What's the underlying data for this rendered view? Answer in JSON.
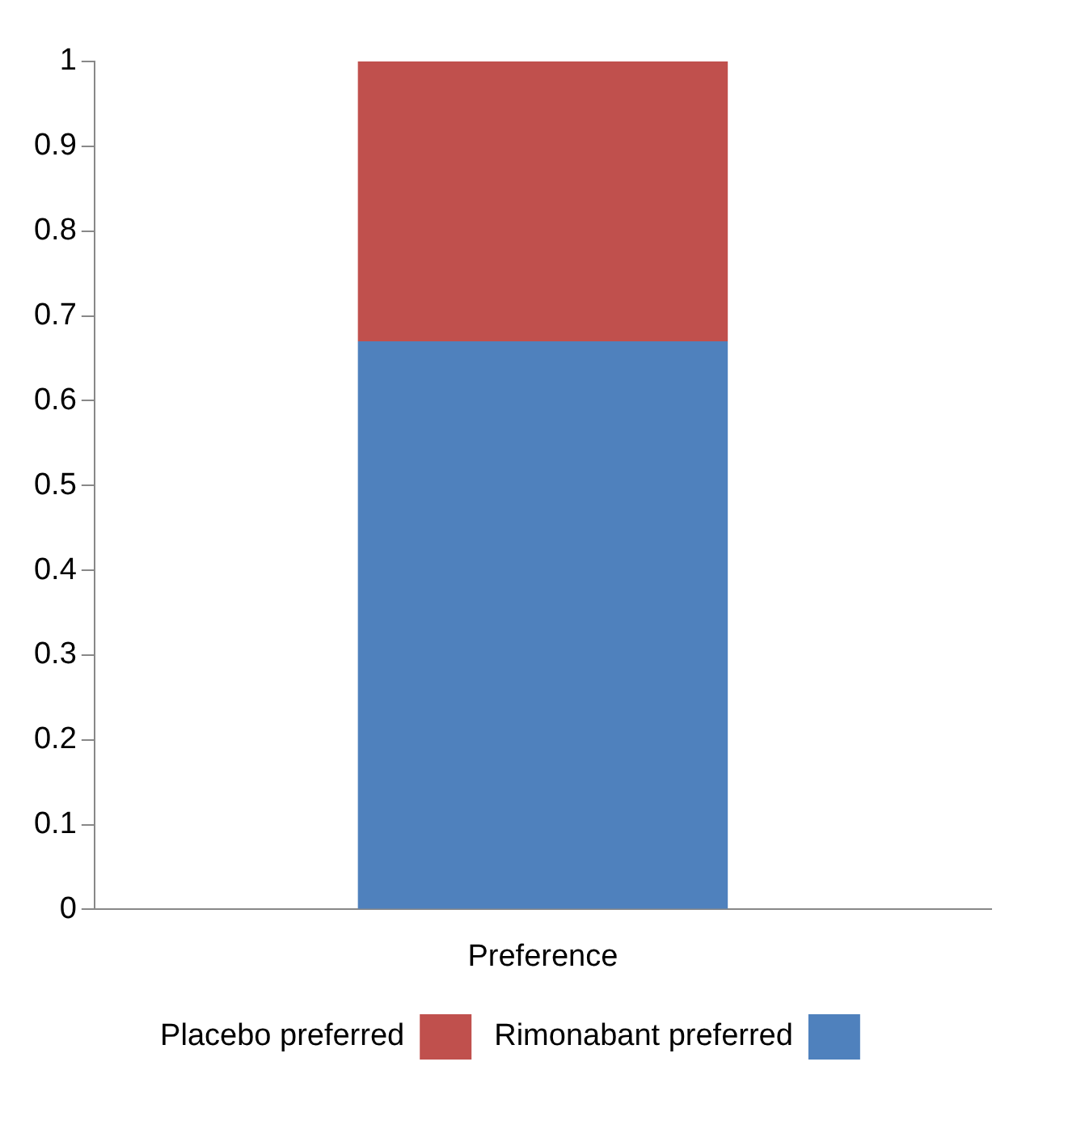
{
  "chart_data": {
    "type": "bar",
    "stacked": true,
    "categories": [
      "Preference"
    ],
    "series": [
      {
        "name": "Rimonabant preferred",
        "color": "#4f81bd",
        "values": [
          0.67
        ]
      },
      {
        "name": "Placebo preferred",
        "color": "#c0504d",
        "values": [
          0.33
        ]
      }
    ],
    "ylim": [
      0,
      1
    ],
    "yticks": [
      0,
      0.1,
      0.2,
      0.3,
      0.4,
      0.5,
      0.6,
      0.7,
      0.8,
      0.9,
      1
    ],
    "grid": false,
    "legend": "bottom"
  }
}
